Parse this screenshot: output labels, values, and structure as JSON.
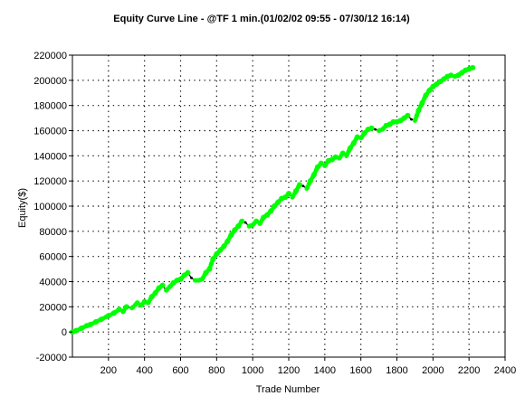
{
  "chart_data": {
    "type": "line",
    "title": "Equity Curve Line - @TF 1 min.(01/02/02 09:55 - 07/30/12 16:14)",
    "xlabel": "Trade Number",
    "ylabel": "Equity($)",
    "xlim": [
      0,
      2400
    ],
    "ylim": [
      -20000,
      220000
    ],
    "x_ticks": [
      200,
      400,
      600,
      800,
      1000,
      1200,
      1400,
      1600,
      1800,
      2000,
      2200,
      2400
    ],
    "y_ticks": [
      -20000,
      0,
      20000,
      40000,
      60000,
      80000,
      100000,
      120000,
      140000,
      160000,
      180000,
      200000,
      220000
    ],
    "grid": true,
    "legend": "none",
    "colors": {
      "new_high": "#00ff00",
      "drawdown": "#000000",
      "grid": "#000000",
      "frame": "#000000"
    },
    "series": [
      {
        "x": [
          0,
          20,
          50,
          80,
          100,
          130,
          160,
          200,
          230,
          260,
          280,
          300,
          330,
          360,
          380,
          400,
          420,
          440,
          460,
          480,
          500,
          520,
          540,
          560,
          580,
          600,
          620,
          640,
          660,
          680,
          700,
          720,
          740,
          760,
          780,
          800,
          820,
          840,
          860,
          880,
          900,
          920,
          940,
          960,
          980,
          1000,
          1020,
          1040,
          1060,
          1080,
          1100,
          1120,
          1140,
          1160,
          1180,
          1200,
          1220,
          1240,
          1260,
          1280,
          1300,
          1320,
          1340,
          1360,
          1380,
          1400,
          1420,
          1440,
          1460,
          1480,
          1500,
          1520,
          1540,
          1560,
          1580,
          1600,
          1620,
          1640,
          1660,
          1680,
          1700,
          1720,
          1740,
          1760,
          1780,
          1800,
          1820,
          1840,
          1860,
          1880,
          1900,
          1920,
          1940,
          1960,
          1980,
          2000,
          2020,
          2040,
          2060,
          2080,
          2100,
          2120,
          2140,
          2160,
          2180,
          2200,
          2220
        ],
        "y": [
          0,
          1000,
          3000,
          5000,
          6000,
          8000,
          10000,
          13000,
          15000,
          18000,
          16000,
          20000,
          19000,
          23000,
          21000,
          24000,
          23000,
          28000,
          31000,
          35000,
          37000,
          33000,
          36000,
          39000,
          41000,
          42000,
          45000,
          47000,
          43000,
          41000,
          41000,
          42000,
          47000,
          50000,
          58000,
          62000,
          65000,
          68000,
          72000,
          77000,
          81000,
          84000,
          88000,
          87000,
          84000,
          85000,
          88000,
          86000,
          91000,
          93000,
          96000,
          100000,
          103000,
          106000,
          107000,
          110000,
          107000,
          112000,
          117000,
          116000,
          114000,
          120000,
          125000,
          131000,
          134000,
          132000,
          136000,
          137000,
          139000,
          138000,
          142000,
          140000,
          146000,
          150000,
          155000,
          154000,
          158000,
          161000,
          162000,
          161000,
          160000,
          161000,
          164000,
          165000,
          167000,
          167000,
          168000,
          170000,
          172000,
          169000,
          168000,
          176000,
          182000,
          188000,
          192000,
          195000,
          197000,
          199000,
          201000,
          203000,
          204000,
          203000,
          204000,
          206000,
          208000,
          209000,
          210000
        ]
      }
    ]
  }
}
